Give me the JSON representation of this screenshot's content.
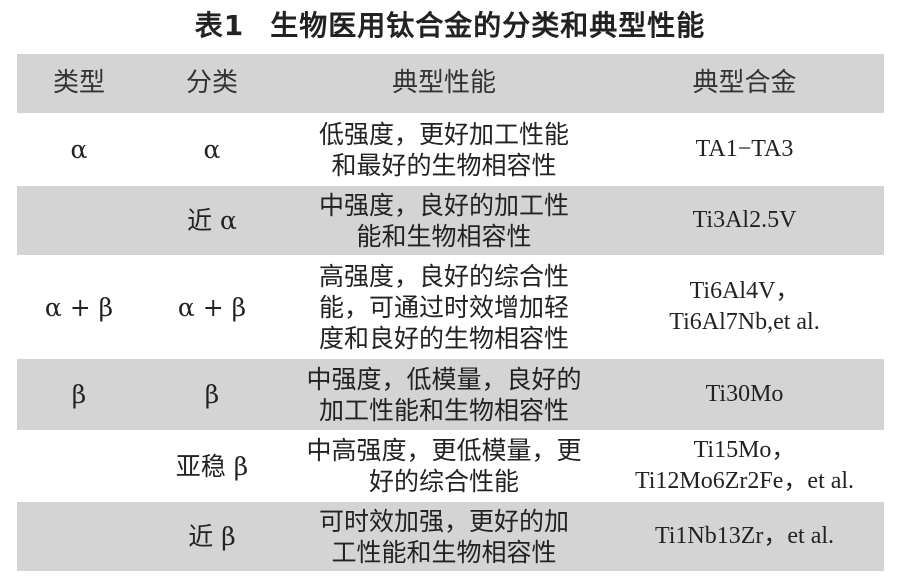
{
  "title": {
    "number": "表1",
    "text": "生物医用钛合金的分类和典型性能"
  },
  "table": {
    "headers": [
      "类型",
      "分类",
      "典型性能",
      "典型合金"
    ],
    "rows": [
      {
        "type": "α",
        "class": "α",
        "properties": [
          "低强度，更好加工性能",
          "和最好的生物相容性"
        ],
        "alloys": [
          "TA1−TA3"
        ]
      },
      {
        "type": "",
        "class": "近 α",
        "properties": [
          "中强度，良好的加工性",
          "能和生物相容性"
        ],
        "alloys": [
          "Ti3Al2.5V"
        ]
      },
      {
        "type": "α + β",
        "class": "α + β",
        "properties": [
          "高强度，良好的综合性",
          "能，可通过时效增加轻",
          "度和良好的生物相容性"
        ],
        "alloys": [
          "Ti6Al4V，",
          "Ti6Al7Nb,et al."
        ]
      },
      {
        "type": "β",
        "class": "β",
        "properties": [
          "中强度，低模量，良好的",
          "加工性能和生物相容性"
        ],
        "alloys": [
          "Ti30Mo"
        ]
      },
      {
        "type": "",
        "class": "亚稳 β",
        "properties": [
          "中高强度，更低模量，更",
          "好的综合性能"
        ],
        "alloys": [
          "Ti15Mo，",
          "Ti12Mo6Zr2Fe，et al."
        ]
      },
      {
        "type": "",
        "class": "近 β",
        "properties": [
          "可时效加强，更好的加",
          "工性能和生物相容性"
        ],
        "alloys": [
          "Ti1Nb13Zr，et al."
        ]
      }
    ]
  },
  "colors": {
    "header_bg": "#d4d4d4",
    "stripe_bg": "#d4d4d4",
    "text": "#222222"
  }
}
